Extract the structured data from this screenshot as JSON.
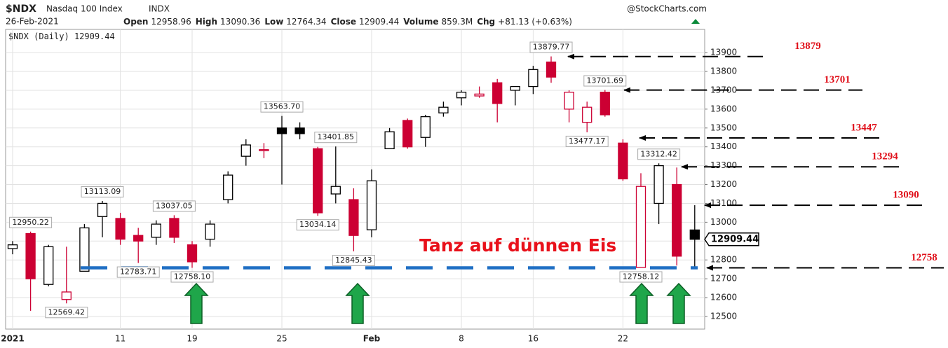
{
  "header": {
    "symbol": "$NDX",
    "name": "Nasdaq 100 Index",
    "exchange": "INDX",
    "source": "@StockCharts.com",
    "date": "26-Feb-2021",
    "stats": [
      {
        "label": "Open",
        "value": "12958.96"
      },
      {
        "label": "High",
        "value": "13090.36"
      },
      {
        "label": "Low",
        "value": "12764.34"
      },
      {
        "label": "Close",
        "value": "12909.44"
      },
      {
        "label": "Volume",
        "value": "859.3M"
      },
      {
        "label": "Chg",
        "value": "+81.13 (+0.63%)"
      }
    ]
  },
  "chart_data": {
    "type": "candlestick",
    "legend": "$NDX (Daily)",
    "annotation": "Tanz auf dünnen Eis",
    "categories": [
      "2021",
      null,
      null,
      null,
      null,
      null,
      "11",
      null,
      null,
      null,
      "19",
      null,
      null,
      null,
      null,
      "25",
      null,
      null,
      null,
      null,
      "Feb",
      null,
      null,
      null,
      null,
      "8",
      null,
      null,
      null,
      "16",
      null,
      null,
      null,
      null,
      "22",
      null,
      null,
      null,
      null
    ],
    "open": [
      12860,
      12940,
      12670,
      12590,
      12740,
      13030,
      13020,
      12930,
      12920,
      13020,
      12880,
      12910,
      13120,
      13350,
      13380,
      13500,
      13500,
      13390,
      13150,
      13120,
      12960,
      13390,
      13540,
      13450,
      13580,
      13660,
      13670,
      13740,
      13700,
      13720,
      13850,
      13600,
      13530,
      13690,
      13420,
      12760,
      13100,
      13200,
      12958.96
    ],
    "high": [
      12900,
      12950.22,
      12880,
      12870,
      12990,
      13113.09,
      13050,
      12970,
      13010,
      13037.05,
      12900,
      13010,
      13270,
      13440,
      13420,
      13563.7,
      13530,
      13400,
      13401.85,
      13180,
      13280,
      13500,
      13550,
      13570,
      13640,
      13700,
      13720,
      13760,
      13720,
      13830,
      13879.77,
      13700,
      13640,
      13701.69,
      13440,
      13260,
      13312.42,
      13290,
      13090.36
    ],
    "low": [
      12830,
      12530,
      12660,
      12569.42,
      12740,
      12920,
      12880,
      12783.71,
      12880,
      12890,
      12758.1,
      12870,
      13100,
      13300,
      13340,
      13200,
      13440,
      13034.14,
      13100,
      12845.43,
      12920,
      13390,
      13390,
      13400,
      13560,
      13620,
      13660,
      13530,
      13620,
      13680,
      13740,
      13530,
      13477.17,
      13560,
      13220,
      12758.12,
      12990,
      12770,
      12764.34
    ],
    "close": [
      12880,
      12700,
      12870,
      12630,
      12970,
      13100,
      12910,
      12900,
      12990,
      12920,
      12790,
      12990,
      13250,
      13410,
      13385,
      13470,
      13470,
      13050,
      13190,
      12930,
      13220,
      13480,
      13400,
      13560,
      13610,
      13690,
      13680,
      13630,
      13720,
      13810,
      13770,
      13690,
      13610,
      13570,
      13230,
      13190,
      13300,
      12820,
      12909.44
    ],
    "colors": [
      "#000000",
      "#cc0033",
      "#000000",
      "#cc0033",
      "#000000",
      "#000000",
      "#cc0033",
      "#cc0033",
      "#000000",
      "#cc0033",
      "#cc0033",
      "#000000",
      "#000000",
      "#000000",
      "#cc0033",
      "#000000",
      "#000000",
      "#cc0033",
      "#000000",
      "#cc0033",
      "#000000",
      "#000000",
      "#cc0033",
      "#000000",
      "#000000",
      "#000000",
      "#cc0033",
      "#cc0033",
      "#000000",
      "#000000",
      "#cc0033",
      "#cc0033",
      "#cc0033",
      "#cc0033",
      "#cc0033",
      "#cc0033",
      "#000000",
      "#cc0033",
      "#000000"
    ],
    "price_labels": [
      {
        "value": 12950.22,
        "label": "12950.22"
      },
      {
        "value": 13113.09,
        "label": "13113.09"
      },
      {
        "value": 12783.71,
        "label": "12783.71"
      },
      {
        "value": 12569.42,
        "label": "12569.42"
      },
      {
        "value": 13037.05,
        "label": "13037.05"
      },
      {
        "value": 12758.1,
        "label": "12758.10"
      },
      {
        "value": 13563.7,
        "label": "13563.70"
      },
      {
        "value": 13401.85,
        "label": "13401.85"
      },
      {
        "value": 13034.14,
        "label": "13034.14"
      },
      {
        "value": 12845.43,
        "label": "12845.43"
      },
      {
        "value": 13879.77,
        "label": "13879.77"
      },
      {
        "value": 13701.69,
        "label": "13701.69"
      },
      {
        "value": 13477.17,
        "label": "13477.17"
      },
      {
        "value": 13312.42,
        "label": "13312.42"
      },
      {
        "value": 12758.12,
        "label": "12758.12"
      }
    ],
    "levels": [
      13879,
      13701,
      13447,
      13294,
      13090,
      12758
    ],
    "ylim": [
      12433,
      14023
    ],
    "yticks": [
      12500,
      12600,
      12700,
      12800,
      12900,
      13000,
      13100,
      13200,
      13300,
      13400,
      13500,
      13600,
      13700,
      13800,
      13900
    ],
    "grid": true
  }
}
